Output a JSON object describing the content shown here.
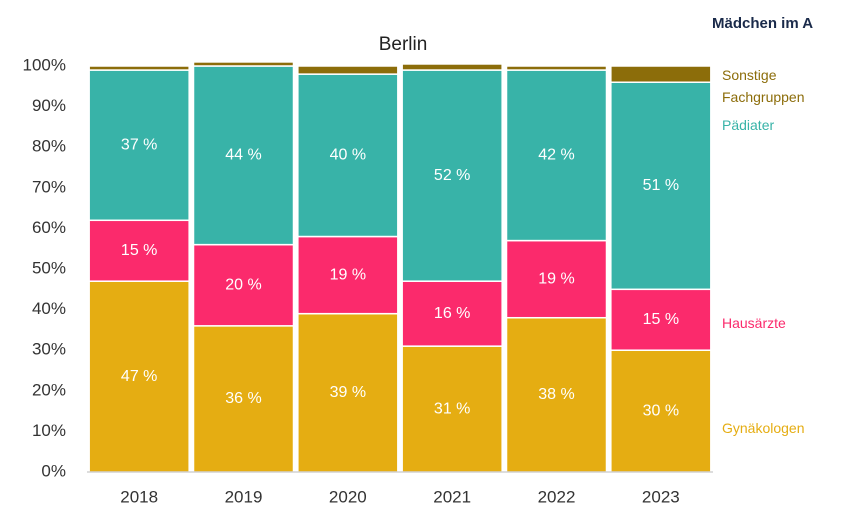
{
  "chart_data": {
    "type": "stacked_bar",
    "title": "Berlin",
    "panel_title": "Mädchen im A",
    "categories": [
      "2018",
      "2019",
      "2020",
      "2021",
      "2022",
      "2023"
    ],
    "ylim": [
      0,
      100
    ],
    "yticks": [
      {
        "value": 0,
        "label": "0%"
      },
      {
        "value": 10,
        "label": "10%"
      },
      {
        "value": 20,
        "label": "20%"
      },
      {
        "value": 30,
        "label": "30%"
      },
      {
        "value": 40,
        "label": "40%"
      },
      {
        "value": 50,
        "label": "50%"
      },
      {
        "value": 60,
        "label": "60%"
      },
      {
        "value": 70,
        "label": "70%"
      },
      {
        "value": 80,
        "label": "80%"
      },
      {
        "value": 90,
        "label": "90%"
      },
      {
        "value": 100,
        "label": "100%"
      }
    ],
    "series": [
      {
        "name": "Gynäkologen",
        "color": "#e5ad12",
        "values": [
          47,
          36,
          39,
          31,
          38,
          30
        ],
        "value_labels": [
          "47 %",
          "36 %",
          "39 %",
          "31 %",
          "38 %",
          "30 %"
        ]
      },
      {
        "name": "Hausärzte",
        "color": "#fb2a6c",
        "values": [
          15,
          20,
          19,
          16,
          19,
          15
        ],
        "value_labels": [
          "15 %",
          "20 %",
          "19 %",
          "16 %",
          "19 %",
          "15 %"
        ]
      },
      {
        "name": "Pädiater",
        "color": "#38b3a8",
        "values": [
          37,
          44,
          40,
          52,
          42,
          51
        ],
        "value_labels": [
          "37 %",
          "44 %",
          "40 %",
          "52 %",
          "42 %",
          "51 %"
        ]
      },
      {
        "name": "Sonstige Fachgruppen",
        "color": "#8c6d0a",
        "values": [
          1,
          1,
          2,
          1.5,
          1,
          4
        ]
      }
    ]
  }
}
